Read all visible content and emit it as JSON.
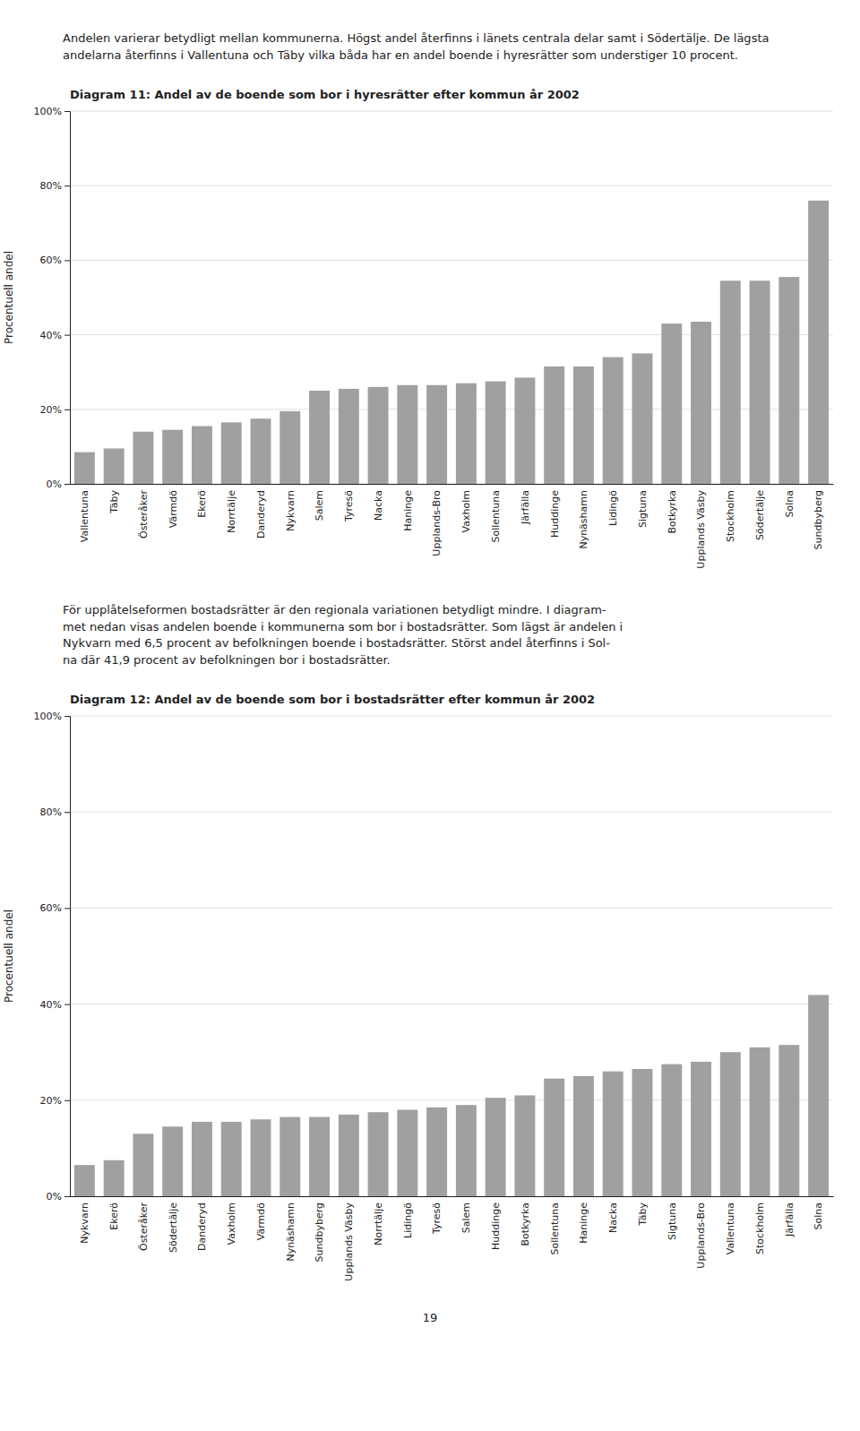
{
  "chart_data": [
    {
      "type": "bar",
      "title": "Diagram 11: Andel av de boende som bor i hyresrätter efter kommun år 2002",
      "ylabel": "Procentuell andel",
      "categories": [
        "Vallentuna",
        "Täby",
        "Österåker",
        "Värmdö",
        "Ekerö",
        "Norrtälje",
        "Danderyd",
        "Nykvarn",
        "Salem",
        "Tyresö",
        "Nacka",
        "Haninge",
        "Upplands-Bro",
        "Vaxholm",
        "Sollentuna",
        "Järfälla",
        "Huddinge",
        "Nynäshamn",
        "Lidingö",
        "Sigtuna",
        "Botkyrka",
        "Upplands Väsby",
        "Stockholm",
        "Södertälje",
        "Solna",
        "Sundbyberg"
      ],
      "values": [
        8.5,
        9.5,
        14.0,
        14.5,
        15.5,
        16.5,
        17.5,
        19.5,
        25.0,
        25.5,
        26.0,
        26.5,
        26.5,
        27.0,
        27.5,
        28.5,
        31.5,
        31.5,
        34.0,
        35.0,
        43.0,
        43.5,
        54.5,
        54.5,
        55.5,
        76.0
      ],
      "color": "#a0a0a0",
      "ylim": [
        0,
        100
      ],
      "yticks": [
        {
          "value": 0,
          "label": "0%"
        },
        {
          "value": 20,
          "label": "20%"
        },
        {
          "value": 40,
          "label": "40%"
        },
        {
          "value": 60,
          "label": "60%"
        },
        {
          "value": 80,
          "label": "80%"
        },
        {
          "value": 100,
          "label": "100%"
        }
      ],
      "grid": true
    },
    {
      "type": "bar",
      "title": "Diagram 12: Andel av de boende som bor i bostadsrätter efter kommun år 2002",
      "ylabel": "Procentuell andel",
      "categories": [
        "Nykvarn",
        "Ekerö",
        "Österåker",
        "Södertälje",
        "Danderyd",
        "Vaxholm",
        "Värmdö",
        "Nynäshamn",
        "Sundbyberg",
        "Upplands Väsby",
        "Norrtälje",
        "Lidingö",
        "Tyresö",
        "Salem",
        "Huddinge",
        "Botkyrka",
        "Sollentuna",
        "Haninge",
        "Nacka",
        "Täby",
        "Sigtuna",
        "Upplands-Bro",
        "Vallentuna",
        "Stockholm",
        "Järfälla",
        "Solna"
      ],
      "values": [
        6.5,
        7.5,
        13.0,
        14.5,
        15.5,
        15.5,
        16.0,
        16.5,
        16.5,
        17.0,
        17.5,
        18.0,
        18.5,
        19.0,
        20.5,
        21.0,
        24.5,
        25.0,
        26.0,
        26.5,
        27.5,
        28.0,
        30.0,
        31.0,
        31.5,
        41.9
      ],
      "color": "#a0a0a0",
      "ylim": [
        0,
        100
      ],
      "yticks": [
        {
          "value": 0,
          "label": "0%"
        },
        {
          "value": 20,
          "label": "20%"
        },
        {
          "value": 40,
          "label": "40%"
        },
        {
          "value": 60,
          "label": "60%"
        },
        {
          "value": 80,
          "label": "80%"
        },
        {
          "value": 100,
          "label": "100%"
        }
      ],
      "grid": true
    }
  ],
  "text_block1": "Andelen varierar betydligt mellan kommunerna. Högst andel återfinns i länets centrala delar samt i Södertälje. De lägsta andelarna återfinns i Vallentuna och Täby vilka båda har en andel boende i hyresrätter som understiger 10 procent.",
  "text_block2_lines": [
    "För upplåtelseformen bostadsrätter är den regionala variationen betydligt mindre. I diagram-",
    "met nedan visas andelen boende i kommunerna som bor i bostadsrätter. Som lägst är andelen i",
    "Nykvarn med 6,5 procent av befolkningen boende i bostadsrätter. Störst andel återfinns i Sol-",
    "na där 41,9 procent av befolkningen bor i bostadsrätter."
  ],
  "page_number": "19"
}
